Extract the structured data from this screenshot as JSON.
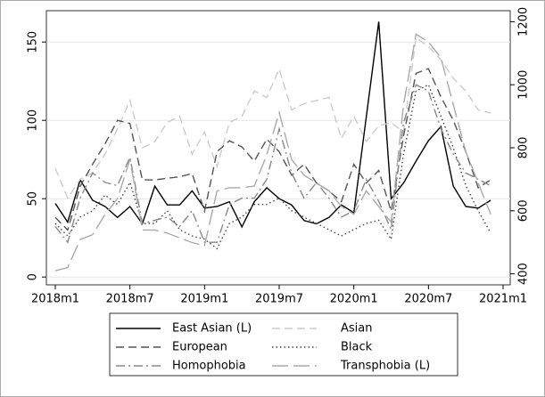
{
  "chart_data": {
    "type": "line",
    "x": [
      "2018m1",
      "2018m2",
      "2018m3",
      "2018m4",
      "2018m5",
      "2018m6",
      "2018m7",
      "2018m8",
      "2018m9",
      "2018m10",
      "2018m11",
      "2018m12",
      "2019m1",
      "2019m2",
      "2019m3",
      "2019m4",
      "2019m5",
      "2019m6",
      "2019m7",
      "2019m8",
      "2019m9",
      "2019m10",
      "2019m11",
      "2019m12",
      "2020m1",
      "2020m2",
      "2020m3",
      "2020m4",
      "2020m5",
      "2020m6",
      "2020m7",
      "2020m8",
      "2020m9",
      "2020m10",
      "2020m11",
      "2020m12"
    ],
    "xticks": [
      "2018m1",
      "2018m7",
      "2019m1",
      "2019m7",
      "2020m1",
      "2020m7",
      "2021m1"
    ],
    "ylim": [
      -5,
      170
    ],
    "yticks": [
      0,
      50,
      100,
      150
    ],
    "y2lim": [
      365,
      1235
    ],
    "y2ticks": [
      400,
      600,
      800,
      1000,
      1200
    ],
    "grid": true,
    "series": [
      {
        "name": "East Asian (L)",
        "color": "#000000",
        "dash": "solid",
        "values": [
          47,
          35,
          62,
          49,
          45,
          38,
          45,
          34,
          58,
          46,
          46,
          55,
          44,
          45,
          48,
          32,
          48,
          57,
          50,
          46,
          36,
          34,
          38,
          46,
          41,
          102,
          163,
          50,
          60,
          74,
          87,
          96,
          58,
          45,
          44,
          49
        ]
      },
      {
        "name": "Asian",
        "color": "#cccccc",
        "dash": "dashed",
        "axis": "y2",
        "values": [
          735,
          640,
          700,
          720,
          780,
          860,
          950,
          800,
          820,
          880,
          900,
          780,
          850,
          740,
          880,
          900,
          980,
          960,
          1050,
          920,
          940,
          950,
          960,
          830,
          900,
          820,
          870,
          880,
          850,
          1150,
          1120,
          1080,
          1020,
          980,
          920,
          910
        ]
      },
      {
        "name": "European",
        "color": "#555555",
        "dash": "dashed",
        "values": [
          38,
          30,
          58,
          72,
          85,
          100,
          98,
          62,
          62,
          63,
          64,
          66,
          42,
          80,
          87,
          83,
          74,
          88,
          80,
          65,
          72,
          60,
          55,
          48,
          72,
          60,
          68,
          42,
          90,
          130,
          133,
          115,
          100,
          80,
          57,
          62
        ]
      },
      {
        "name": "Black",
        "color": "#444444",
        "dash": "dotted",
        "axis": "y2",
        "values": [
          560,
          520,
          580,
          600,
          650,
          620,
          690,
          560,
          560,
          600,
          540,
          520,
          510,
          480,
          560,
          580,
          620,
          620,
          640,
          600,
          580,
          560,
          540,
          520,
          540,
          560,
          570,
          510,
          780,
          980,
          1000,
          900,
          800,
          680,
          600,
          530
        ]
      },
      {
        "name": "Homophobia",
        "color": "#888888",
        "dash": "dashdot",
        "axis": "y2",
        "values": [
          550,
          500,
          640,
          720,
          690,
          680,
          770,
          560,
          570,
          580,
          550,
          600,
          500,
          500,
          620,
          640,
          640,
          700,
          860,
          720,
          640,
          690,
          640,
          580,
          600,
          700,
          630,
          540,
          880,
          1000,
          980,
          860,
          780,
          720,
          700,
          680
        ]
      },
      {
        "name": "Transphobia (L)",
        "color": "#aaaaaa",
        "dash": "longdash",
        "values": [
          4,
          6,
          24,
          27,
          40,
          50,
          75,
          30,
          30,
          28,
          25,
          22,
          20,
          55,
          57,
          57,
          58,
          78,
          105,
          75,
          65,
          60,
          55,
          45,
          40,
          55,
          45,
          35,
          110,
          155,
          150,
          140,
          110,
          80,
          60,
          40
        ]
      }
    ]
  }
}
